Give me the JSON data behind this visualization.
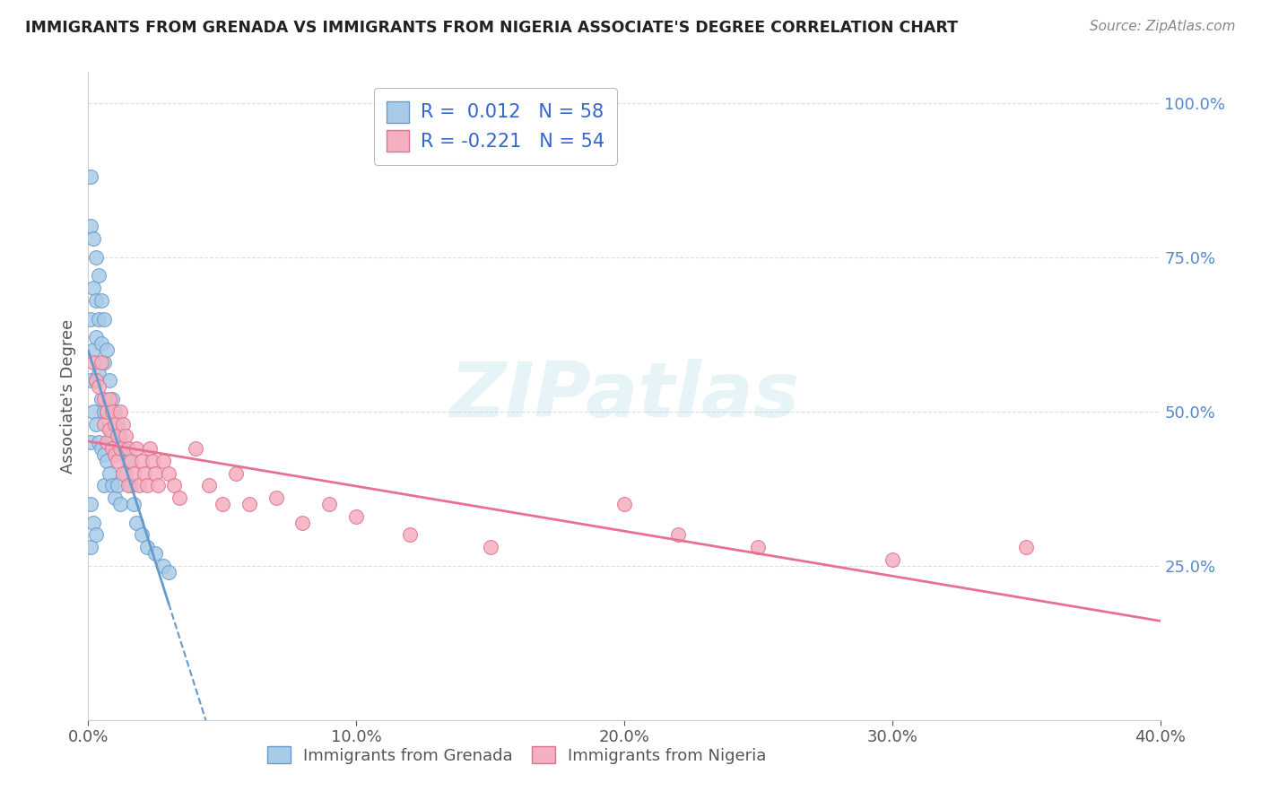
{
  "title": "IMMIGRANTS FROM GRENADA VS IMMIGRANTS FROM NIGERIA ASSOCIATE'S DEGREE CORRELATION CHART",
  "source": "Source: ZipAtlas.com",
  "ylabel": "Associate's Degree",
  "xlim": [
    0.0,
    0.4
  ],
  "ylim": [
    0.0,
    1.05
  ],
  "xtick_labels": [
    "0.0%",
    "10.0%",
    "20.0%",
    "30.0%",
    "40.0%"
  ],
  "xtick_vals": [
    0.0,
    0.1,
    0.2,
    0.3,
    0.4
  ],
  "ytick_labels_right": [
    "25.0%",
    "50.0%",
    "75.0%",
    "100.0%"
  ],
  "ytick_vals_right": [
    0.25,
    0.5,
    0.75,
    1.0
  ],
  "grenada_color": "#a8cce8",
  "nigeria_color": "#f4b0c0",
  "grenada_edge": "#6699cc",
  "nigeria_edge": "#e07090",
  "grenada_line_color": "#6699cc",
  "nigeria_line_color": "#e87090",
  "R_grenada": 0.012,
  "N_grenada": 58,
  "R_nigeria": -0.221,
  "N_nigeria": 54,
  "legend_label_grenada": "Immigrants from Grenada",
  "legend_label_nigeria": "Immigrants from Nigeria",
  "watermark": "ZIPatlas",
  "background_color": "#ffffff",
  "grenada_x": [
    0.001,
    0.001,
    0.001,
    0.001,
    0.001,
    0.002,
    0.002,
    0.002,
    0.002,
    0.003,
    0.003,
    0.003,
    0.003,
    0.003,
    0.004,
    0.004,
    0.004,
    0.004,
    0.005,
    0.005,
    0.005,
    0.005,
    0.006,
    0.006,
    0.006,
    0.006,
    0.006,
    0.007,
    0.007,
    0.007,
    0.008,
    0.008,
    0.008,
    0.009,
    0.009,
    0.009,
    0.01,
    0.01,
    0.01,
    0.011,
    0.011,
    0.012,
    0.012,
    0.013,
    0.014,
    0.015,
    0.016,
    0.017,
    0.018,
    0.02,
    0.022,
    0.025,
    0.028,
    0.03,
    0.001,
    0.001,
    0.002,
    0.003
  ],
  "grenada_y": [
    0.88,
    0.8,
    0.65,
    0.55,
    0.45,
    0.78,
    0.7,
    0.6,
    0.5,
    0.75,
    0.68,
    0.62,
    0.55,
    0.48,
    0.72,
    0.65,
    0.56,
    0.45,
    0.68,
    0.61,
    0.52,
    0.44,
    0.65,
    0.58,
    0.5,
    0.43,
    0.38,
    0.6,
    0.5,
    0.42,
    0.55,
    0.47,
    0.4,
    0.52,
    0.46,
    0.38,
    0.5,
    0.44,
    0.36,
    0.48,
    0.38,
    0.46,
    0.35,
    0.44,
    0.4,
    0.42,
    0.38,
    0.35,
    0.32,
    0.3,
    0.28,
    0.27,
    0.25,
    0.24,
    0.35,
    0.28,
    0.32,
    0.3
  ],
  "nigeria_x": [
    0.002,
    0.003,
    0.004,
    0.005,
    0.006,
    0.006,
    0.007,
    0.007,
    0.008,
    0.008,
    0.009,
    0.009,
    0.01,
    0.01,
    0.011,
    0.011,
    0.012,
    0.012,
    0.013,
    0.013,
    0.014,
    0.015,
    0.015,
    0.016,
    0.017,
    0.018,
    0.019,
    0.02,
    0.021,
    0.022,
    0.023,
    0.024,
    0.025,
    0.026,
    0.028,
    0.03,
    0.032,
    0.034,
    0.04,
    0.045,
    0.05,
    0.055,
    0.06,
    0.07,
    0.08,
    0.09,
    0.1,
    0.12,
    0.15,
    0.2,
    0.22,
    0.25,
    0.3,
    0.35
  ],
  "nigeria_y": [
    0.58,
    0.55,
    0.54,
    0.58,
    0.52,
    0.48,
    0.5,
    0.45,
    0.52,
    0.47,
    0.5,
    0.44,
    0.48,
    0.43,
    0.46,
    0.42,
    0.5,
    0.44,
    0.48,
    0.4,
    0.46,
    0.44,
    0.38,
    0.42,
    0.4,
    0.44,
    0.38,
    0.42,
    0.4,
    0.38,
    0.44,
    0.42,
    0.4,
    0.38,
    0.42,
    0.4,
    0.38,
    0.36,
    0.44,
    0.38,
    0.35,
    0.4,
    0.35,
    0.36,
    0.32,
    0.35,
    0.33,
    0.3,
    0.28,
    0.35,
    0.3,
    0.28,
    0.26,
    0.28
  ]
}
